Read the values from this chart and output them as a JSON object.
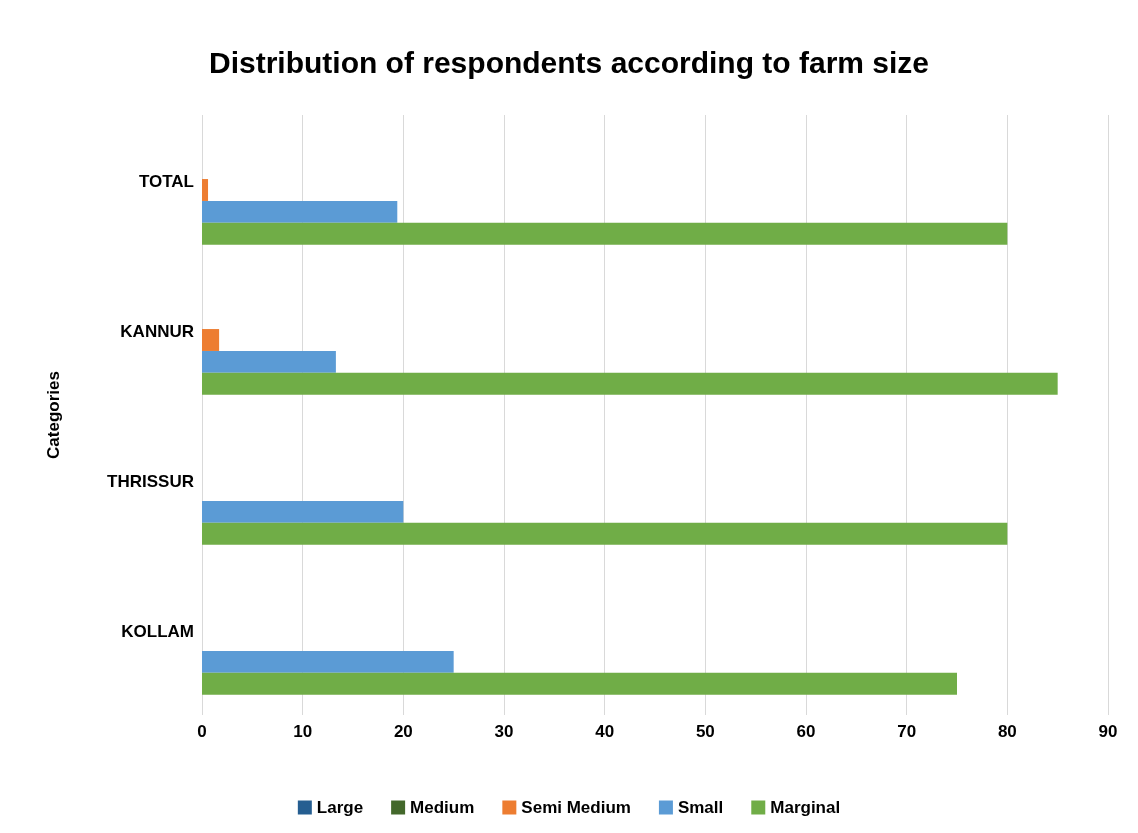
{
  "chart_data": {
    "type": "bar",
    "orientation": "horizontal",
    "title": "Distribution of respondents according to farm size",
    "ylabel": "Categories",
    "categories": [
      "TOTAL",
      "KANNUR",
      "THRISSUR",
      "KOLLAM"
    ],
    "series": [
      {
        "name": "Large",
        "color": "#255e91",
        "values": [
          0,
          0,
          0,
          0
        ]
      },
      {
        "name": "Medium",
        "color": "#43682b",
        "values": [
          0,
          0,
          0,
          0
        ]
      },
      {
        "name": "Semi Medium",
        "color": "#ed7d31",
        "values": [
          0.6,
          1.7,
          0,
          0
        ]
      },
      {
        "name": "Small",
        "color": "#5b9bd5",
        "values": [
          19.4,
          13.3,
          20,
          25
        ]
      },
      {
        "name": "Marginal",
        "color": "#70ad47",
        "values": [
          80,
          85,
          80,
          75
        ]
      }
    ],
    "xlim": [
      0,
      90
    ],
    "xticks": [
      0,
      10,
      20,
      30,
      40,
      50,
      60,
      70,
      80,
      90
    ],
    "grid": "x",
    "legend": "bottom"
  }
}
